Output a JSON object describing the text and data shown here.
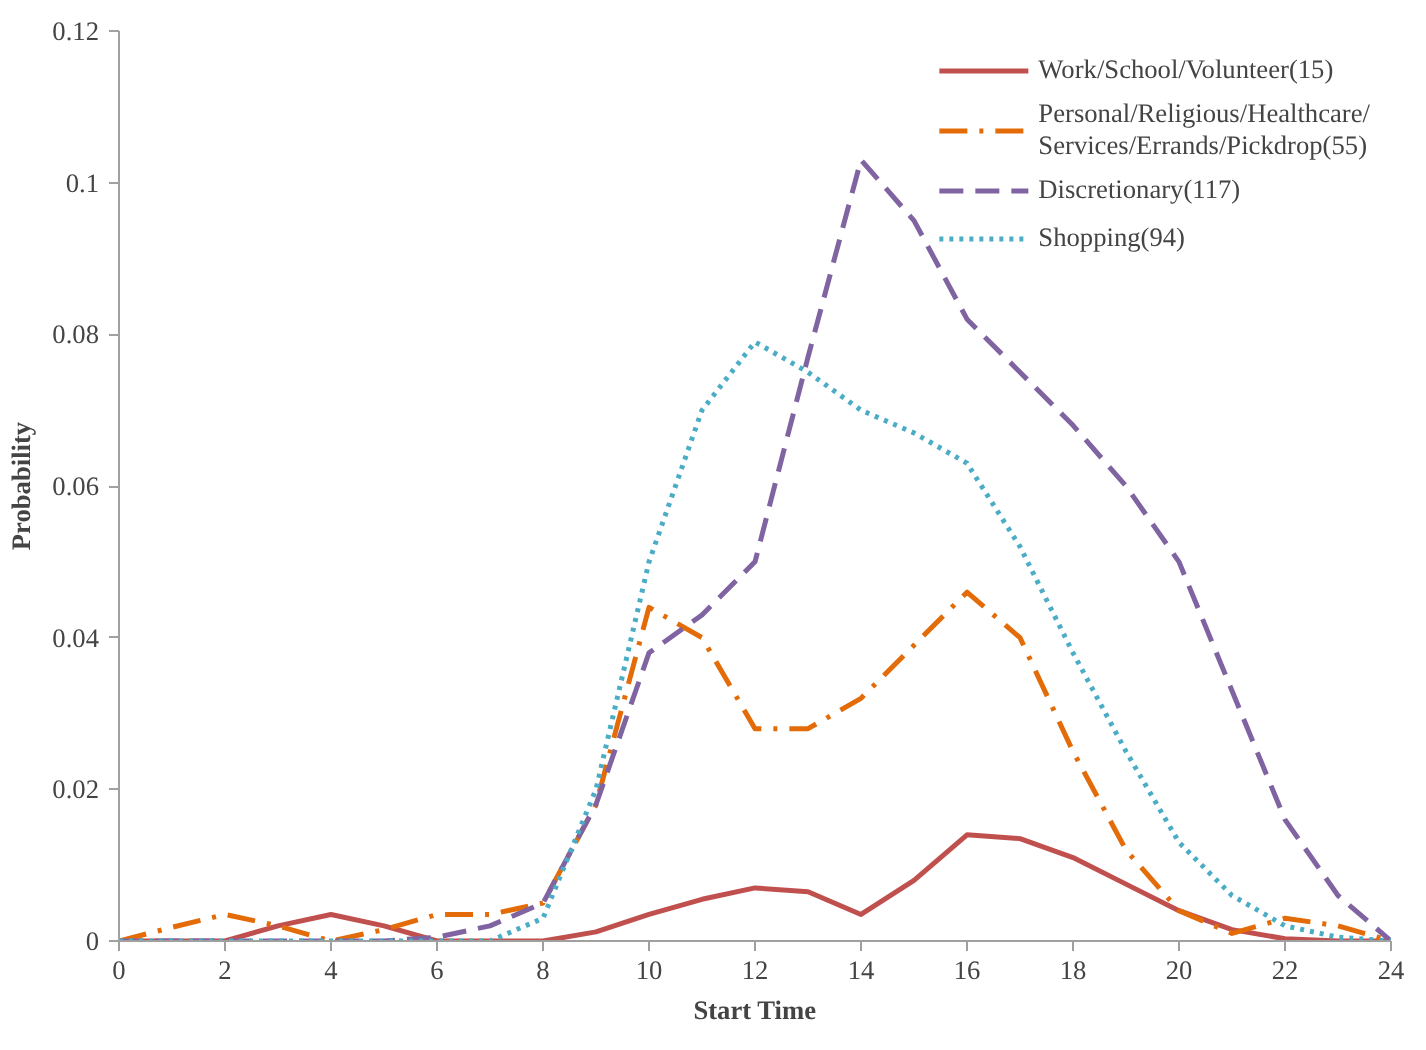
{
  "chart_data": {
    "type": "line",
    "xlabel": "Start Time",
    "ylabel": "Probability",
    "x": [
      0,
      1,
      2,
      3,
      4,
      5,
      6,
      7,
      8,
      9,
      10,
      11,
      12,
      13,
      14,
      15,
      16,
      17,
      18,
      19,
      20,
      21,
      22,
      23,
      24
    ],
    "series": [
      {
        "name": "Work/School/Volunteer(15)",
        "color": "#c0504d",
        "line_style": "solid",
        "values": [
          0,
          0,
          0,
          0.002,
          0.0035,
          0.002,
          0,
          0,
          0,
          0.0012,
          0.0035,
          0.0055,
          0.007,
          0.0065,
          0.0035,
          0.008,
          0.014,
          0.0135,
          0.011,
          0.0075,
          0.004,
          0.0015,
          0.0003,
          0,
          0
        ]
      },
      {
        "name": "Personal/Religious/Healthcare/\nServices/Errands/Pickdrop(55)",
        "color": "#e36c09",
        "line_style": "dashdot",
        "values": [
          0,
          0.0018,
          0.0035,
          0.002,
          0,
          0.0015,
          0.0035,
          0.0035,
          0.005,
          0.018,
          0.044,
          0.04,
          0.028,
          0.028,
          0.032,
          0.039,
          0.046,
          0.04,
          0.025,
          0.012,
          0.004,
          0.001,
          0.003,
          0.002,
          0
        ]
      },
      {
        "name": "Discretionary(117)",
        "color": "#8064a2",
        "line_style": "dashed",
        "values": [
          0,
          0,
          0,
          0,
          0,
          0,
          0.0005,
          0.002,
          0.005,
          0.018,
          0.038,
          0.043,
          0.05,
          0.077,
          0.103,
          0.095,
          0.082,
          0.075,
          0.068,
          0.06,
          0.05,
          0.033,
          0.016,
          0.006,
          0
        ]
      },
      {
        "name": "Shopping(94)",
        "color": "#4bacc6",
        "line_style": "dotted",
        "values": [
          0,
          0,
          0,
          0,
          0,
          0,
          0,
          0,
          0.003,
          0.02,
          0.05,
          0.07,
          0.079,
          0.075,
          0.07,
          0.067,
          0.063,
          0.052,
          0.038,
          0.025,
          0.013,
          0.006,
          0.002,
          0.0005,
          0
        ]
      }
    ],
    "xlim": [
      0,
      24
    ],
    "xticks": [
      0,
      2,
      4,
      6,
      8,
      10,
      12,
      14,
      16,
      18,
      20,
      22,
      24
    ],
    "ylim": [
      0,
      0.12
    ],
    "yticks": [
      0,
      0.02,
      0.04,
      0.06,
      0.08,
      0.1,
      0.12
    ],
    "grid": false,
    "legend": "top right"
  }
}
